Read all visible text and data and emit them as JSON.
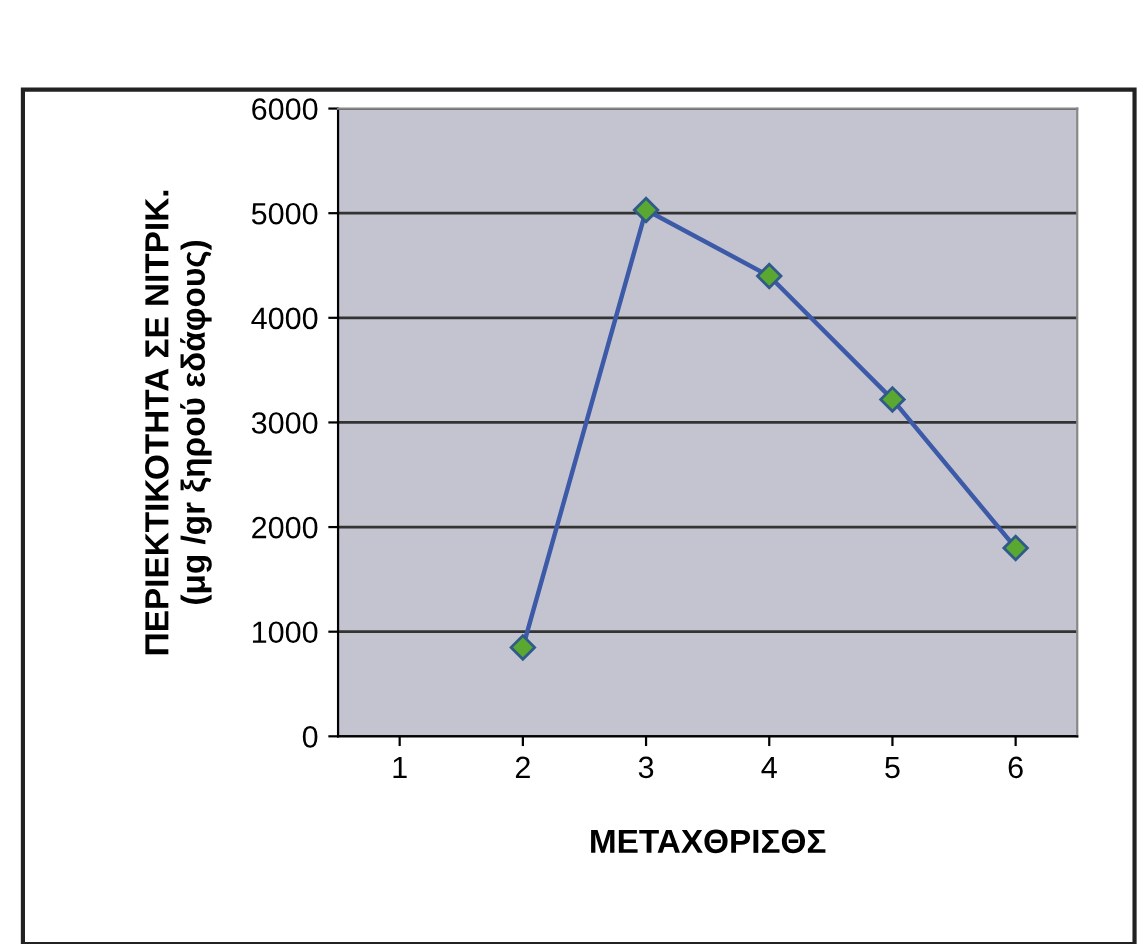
{
  "chart_data": {
    "type": "line",
    "xlabel": "ΜΕΤΑΧΘΡΙΣΘΣ",
    "ylabel": "ΠΕΡΙΕΚΤΙΚΟΤΗΤΑ ΣΕ ΝΙΤΡΙΚ.\n(μg /gr ξηρού εδάφους)",
    "categories": [
      "1",
      "2",
      "3",
      "4",
      "5",
      "6"
    ],
    "series": [
      {
        "color": "#3c5aa8",
        "values": [
          null,
          850,
          5030,
          4400,
          3220,
          1800
        ]
      }
    ],
    "ylim": [
      0,
      6000
    ],
    "yticks": [
      0,
      1000,
      2000,
      3000,
      4000,
      5000,
      6000
    ],
    "grid": "y",
    "marker": "diamond",
    "line_style": "solid",
    "legend": false
  }
}
